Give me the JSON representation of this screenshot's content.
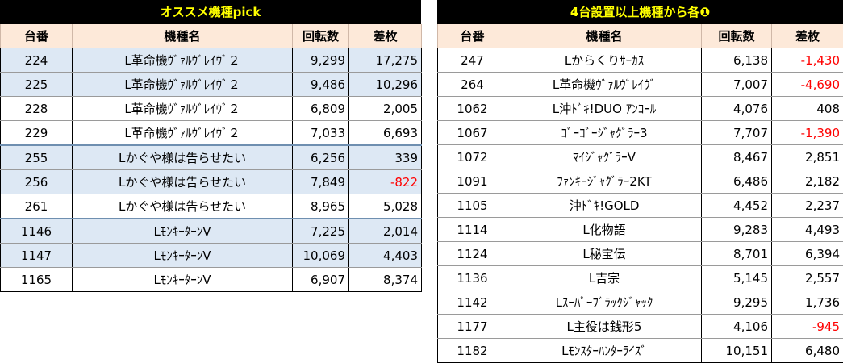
{
  "left_table": {
    "title": "オススメ機種pick",
    "headers": [
      "台番",
      "機種名",
      "回転数",
      "差枚"
    ],
    "rows": [
      {
        "no": "224",
        "name": "L革命機ｳﾞｧﾙｳﾞﾚｲｳﾞ２",
        "spins": "9,299",
        "diff": "17,275"
      },
      {
        "no": "225",
        "name": "L革命機ｳﾞｧﾙｳﾞﾚｲｳﾞ２",
        "spins": "9,486",
        "diff": "10,296"
      },
      {
        "no": "228",
        "name": "L革命機ｳﾞｧﾙｳﾞﾚｲｳﾞ２",
        "spins": "6,809",
        "diff": "2,005"
      },
      {
        "no": "229",
        "name": "L革命機ｳﾞｧﾙｳﾞﾚｲｳﾞ２",
        "spins": "7,033",
        "diff": "6,693"
      },
      {
        "no": "255",
        "name": "Lかぐや様は告らせたい",
        "spins": "6,256",
        "diff": "339"
      },
      {
        "no": "256",
        "name": "Lかぐや様は告らせたい",
        "spins": "7,849",
        "diff": "-822"
      },
      {
        "no": "261",
        "name": "Lかぐや様は告らせたい",
        "spins": "8,965",
        "diff": "5,028"
      },
      {
        "no": "1146",
        "name": "LﾓﾝｷｰﾀｰﾝV",
        "spins": "7,225",
        "diff": "2,014"
      },
      {
        "no": "1147",
        "name": "LﾓﾝｷｰﾀｰﾝV",
        "spins": "10,069",
        "diff": "4,403"
      },
      {
        "no": "1165",
        "name": "LﾓﾝｷｰﾀｰﾝV",
        "spins": "6,907",
        "diff": "8,374"
      }
    ]
  },
  "right_table": {
    "title": "4台設置以上機種から各❶",
    "headers": [
      "台番",
      "機種名",
      "回転数",
      "差枚"
    ],
    "rows": [
      {
        "no": "247",
        "name": "Lからくりｻｰｶｽ",
        "spins": "6,138",
        "diff": "-1,430"
      },
      {
        "no": "264",
        "name": "L革命機ｳﾞｧﾙｳﾞﾚｲｳﾞ",
        "spins": "7,007",
        "diff": "-4,690"
      },
      {
        "no": "1062",
        "name": "L沖ﾄﾞｷ!DUO ｱﾝｺｰﾙ",
        "spins": "4,076",
        "diff": "408"
      },
      {
        "no": "1067",
        "name": "ｺﾞｰｺﾞｰｼﾞｬｸﾞﾗｰ3",
        "spins": "7,707",
        "diff": "-1,390"
      },
      {
        "no": "1072",
        "name": "ﾏｲｼﾞｬｸﾞﾗｰV",
        "spins": "8,467",
        "diff": "2,851"
      },
      {
        "no": "1091",
        "name": "ﾌｧﾝｷｰｼﾞｬｸﾞﾗｰ2KT",
        "spins": "6,486",
        "diff": "2,182"
      },
      {
        "no": "1105",
        "name": "沖ﾄﾞｷ!GOLD",
        "spins": "4,452",
        "diff": "2,237"
      },
      {
        "no": "1114",
        "name": "L化物語",
        "spins": "9,283",
        "diff": "4,493"
      },
      {
        "no": "1124",
        "name": "L秘宝伝",
        "spins": "8,701",
        "diff": "6,394"
      },
      {
        "no": "1136",
        "name": "L吉宗",
        "spins": "5,145",
        "diff": "2,557"
      },
      {
        "no": "1142",
        "name": "Lｽｰﾊﾟｰﾌﾞﾗｯｸｼﾞｬｯｸ",
        "spins": "9,295",
        "diff": "1,736"
      },
      {
        "no": "1177",
        "name": "L主役は銭形5",
        "spins": "4,106",
        "diff": "-945"
      },
      {
        "no": "1182",
        "name": "Lﾓﾝｽﾀｰﾊﾝﾀｰﾗｲｽﾞ",
        "spins": "10,151",
        "diff": "6,480"
      }
    ]
  },
  "colors": {
    "title_bg": "#000000",
    "title_text": "#ffff00",
    "header_bg": "#fde9d9",
    "highlight_row_bg": "#dde8f4",
    "negative_text": "#ff0000"
  }
}
